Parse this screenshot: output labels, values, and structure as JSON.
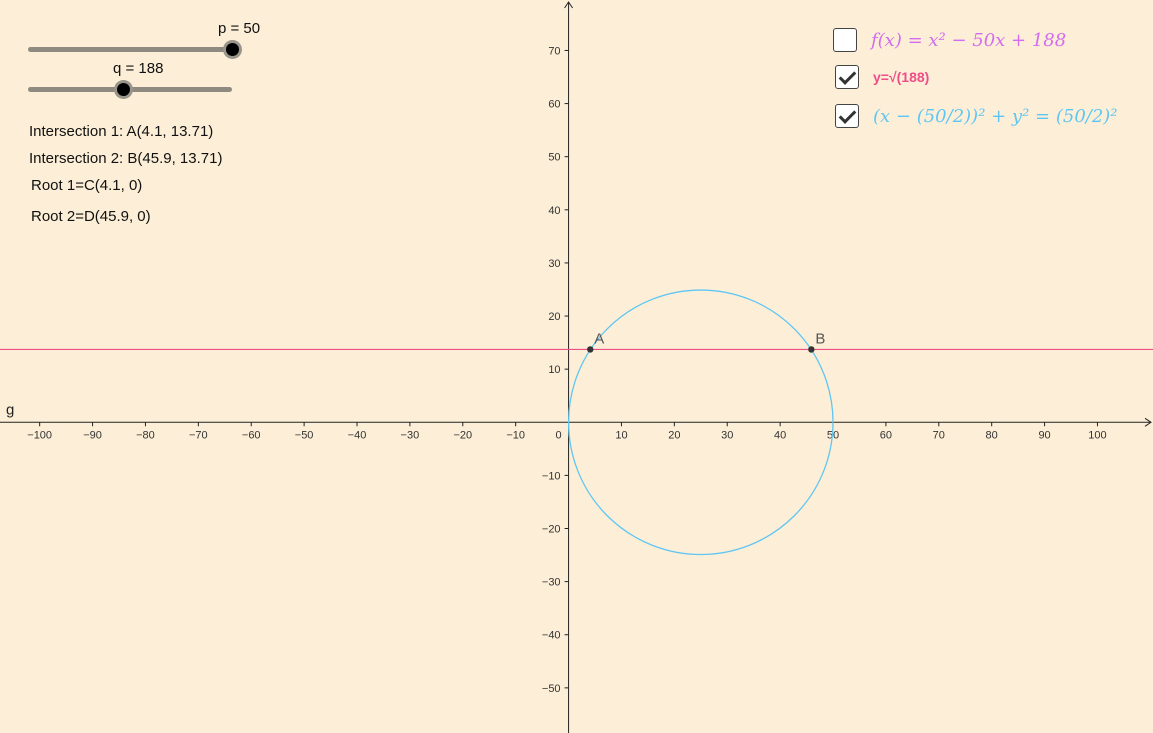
{
  "sliders": [
    {
      "label": "p = 50",
      "min": 0,
      "max": 50,
      "value": 50
    },
    {
      "label": "q = 188",
      "min": 0,
      "max": 400,
      "value": 188
    }
  ],
  "info": {
    "intersection1": "Intersection 1: A(4.1, 13.71)",
    "intersection2": "Intersection 2: B(45.9, 13.71)",
    "root1": "Root 1=C(4.1, 0)",
    "root2": "Root 2=D(45.9, 0)"
  },
  "checkboxes": [
    {
      "label": "f(x) = x² − 50x + 188",
      "checked": false,
      "color": "#d36cf0"
    },
    {
      "label": "y=√(188)",
      "checked": true,
      "color": "#ee4d88"
    },
    {
      "label": "(x − (50/2))² + y² = (50/2)²",
      "checked": true,
      "color": "#5fc6f3"
    }
  ],
  "graph": {
    "x_axis_name": "g",
    "x_ticks": [
      -100,
      -90,
      -80,
      -70,
      -60,
      -50,
      -40,
      -30,
      -20,
      -10,
      0,
      10,
      20,
      30,
      40,
      50,
      60,
      70,
      80,
      90,
      100
    ],
    "y_ticks": [
      -50,
      -40,
      -30,
      -20,
      -10,
      10,
      20,
      30,
      40,
      50,
      60,
      70
    ],
    "x_range": [
      -107.5,
      110.5
    ],
    "y_range": [
      -58.5,
      79.5
    ],
    "line_y": 13.71,
    "circle": {
      "cx": 25,
      "cy": 0,
      "r": 25
    },
    "points": [
      {
        "name": "A",
        "x": 4.1,
        "y": 13.71
      },
      {
        "name": "B",
        "x": 45.9,
        "y": 13.71
      }
    ],
    "colors": {
      "axis": "#222222",
      "circle": "#5fc6f3",
      "line": "#ee4d88",
      "point": "#333333"
    }
  }
}
